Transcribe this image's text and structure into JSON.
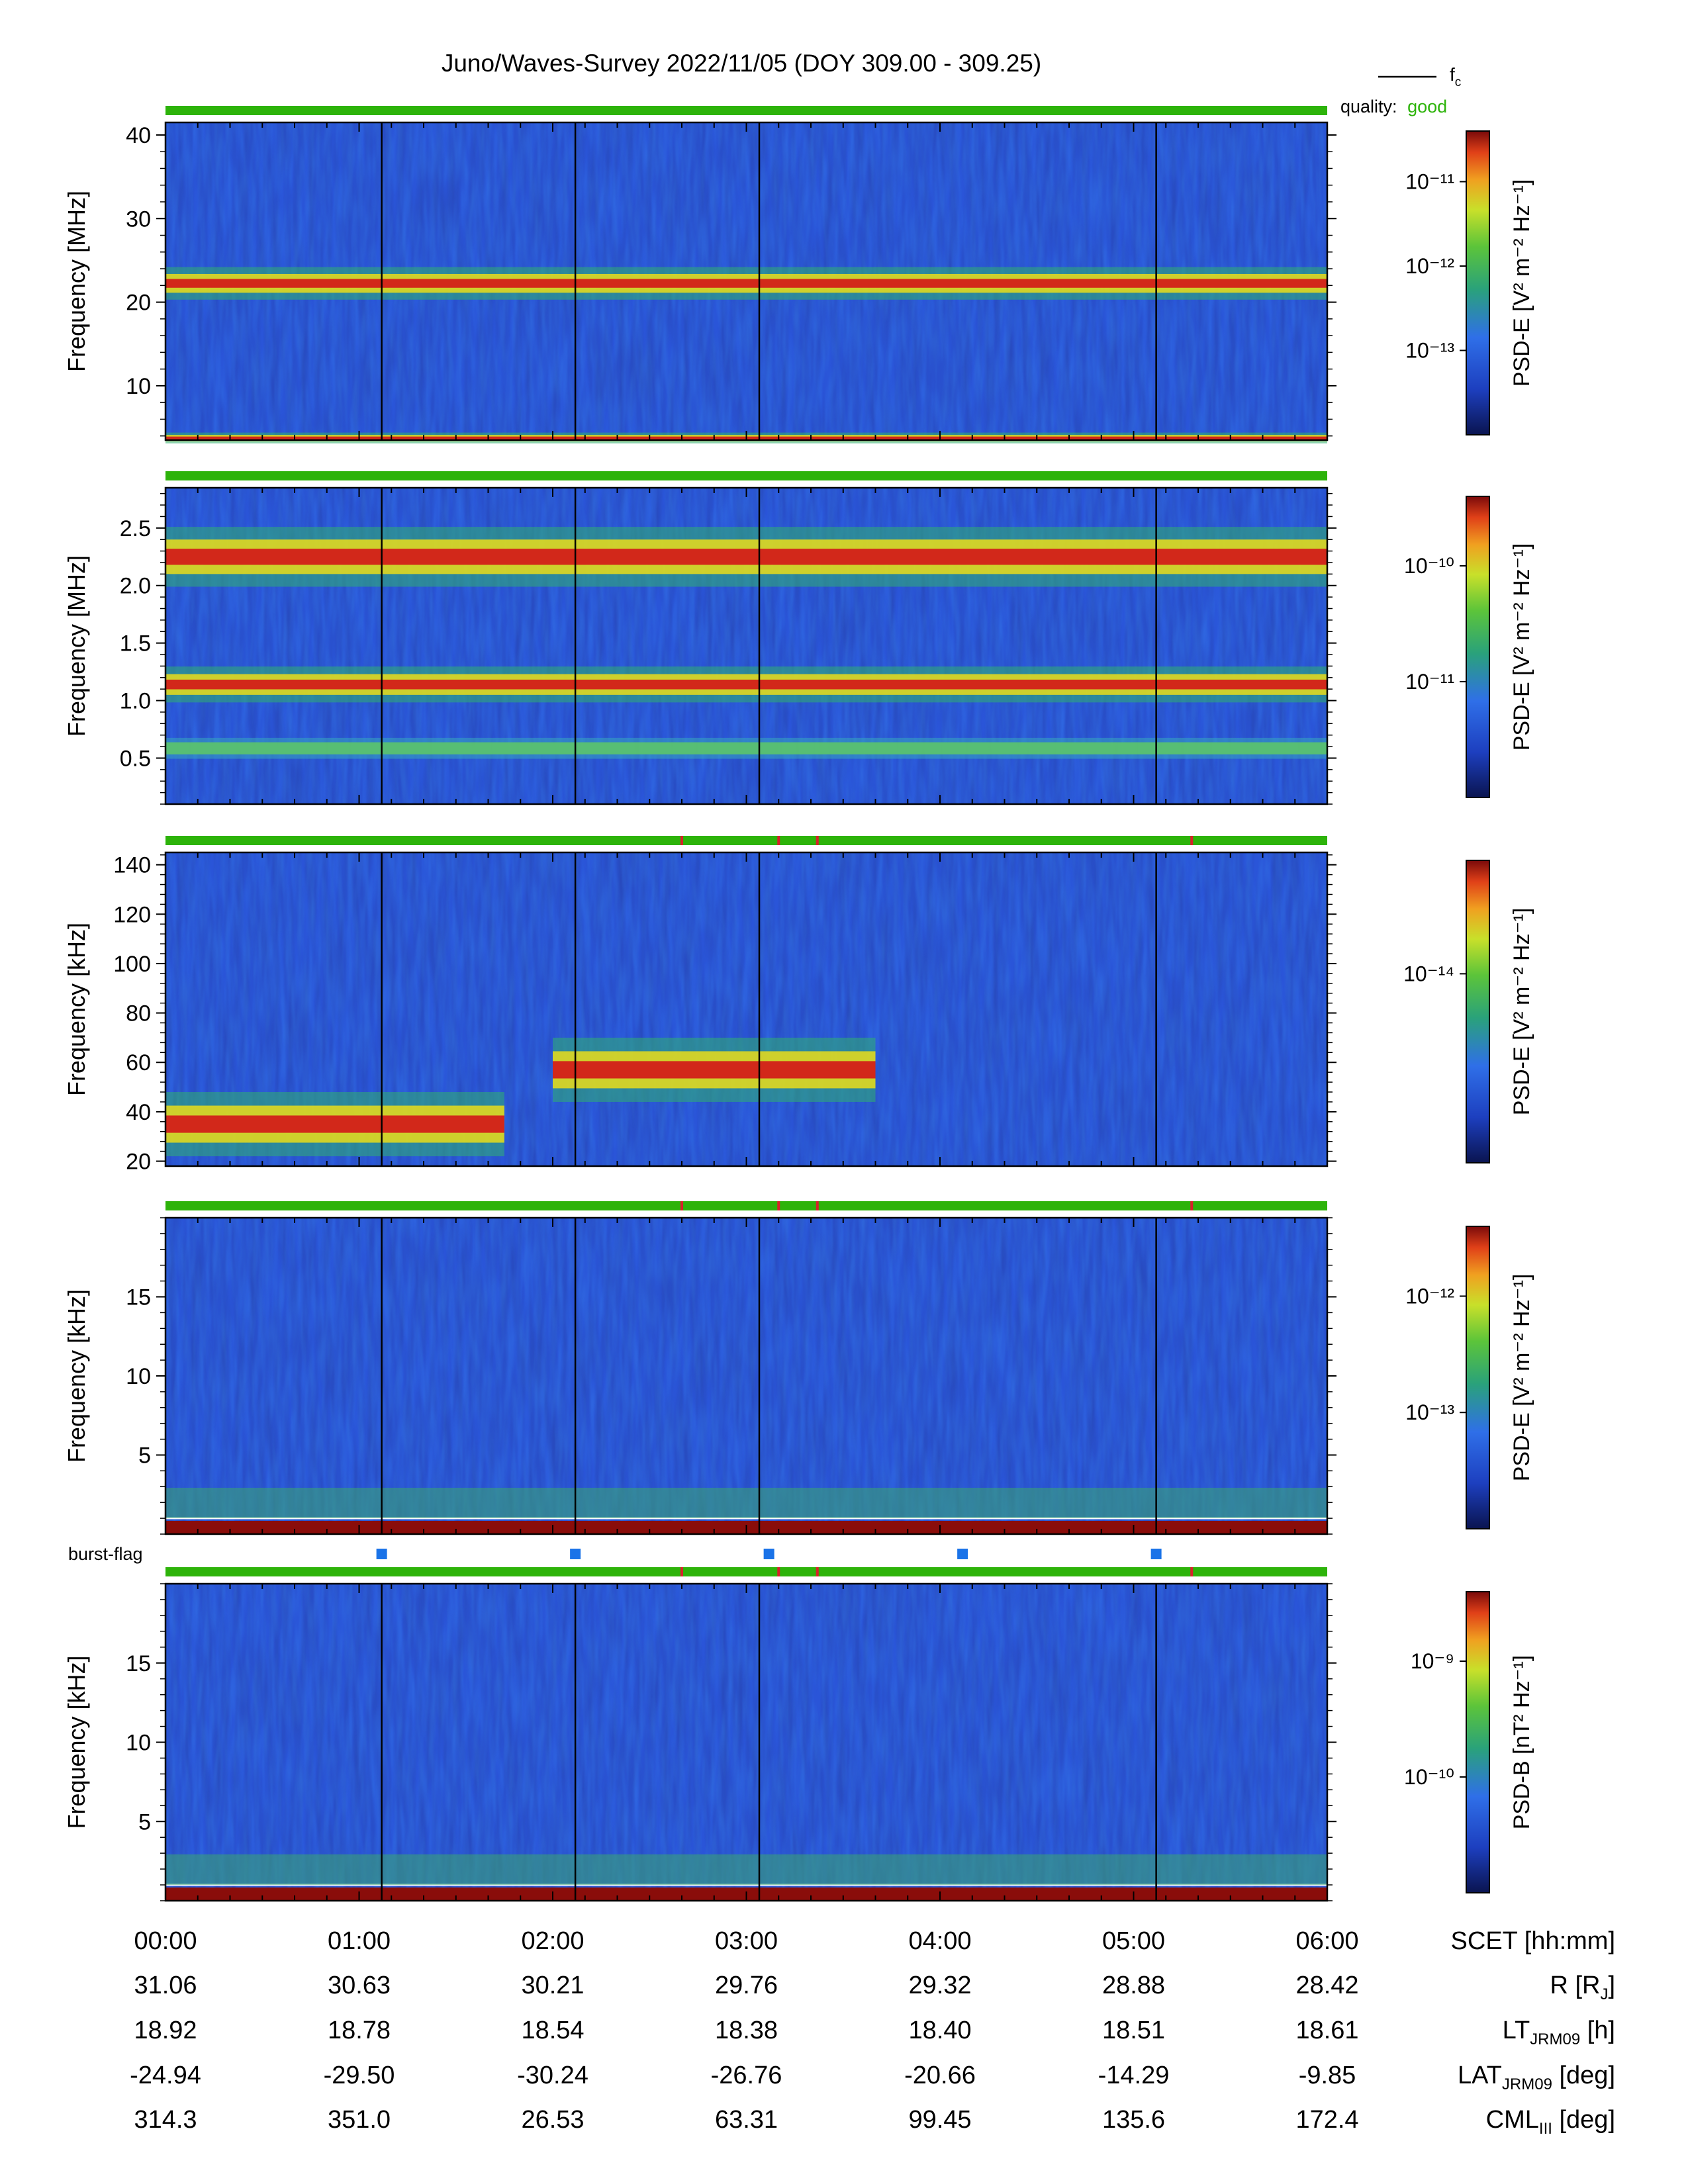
{
  "title": "Juno/Waves-Survey  2022/11/05 (DOY 309.00 - 309.25)",
  "legend": {
    "fc_label": "f",
    "fc_sub": "c",
    "quality_label": "quality:",
    "quality_value": "good",
    "quality_color": "#2db30a"
  },
  "burst_flag_label": "burst-flag",
  "burst_flag_color": "#1a73e8",
  "chart_data": [
    {
      "type": "heatmap",
      "panel": "HFR-high",
      "ylabel": "Frequency [MHz]",
      "yticks": [
        10,
        20,
        30,
        40
      ],
      "ylim": [
        3.5,
        41.5
      ],
      "colorbar": {
        "label": "PSD-E [V² m⁻² Hz⁻¹]",
        "ticks": [
          "10⁻¹¹",
          "10⁻¹²",
          "10⁻¹³"
        ],
        "scale": "log"
      },
      "features": [
        {
          "name": "intense emission band",
          "freq_MHz": [
            21.5,
            23.0
          ]
        },
        {
          "name": "low-frequency edge",
          "freq_MHz": [
            3.5,
            4.0
          ]
        }
      ]
    },
    {
      "type": "heatmap",
      "panel": "HFR-low",
      "ylabel": "Frequency [MHz]",
      "yticks": [
        0.5,
        1.0,
        1.5,
        2.0,
        2.5
      ],
      "ytick_labels": [
        "0.5",
        "1.0",
        "1.5",
        "2.0",
        "2.5"
      ],
      "ylim": [
        0.1,
        2.85
      ],
      "colorbar": {
        "label": "PSD-E [V² m⁻² Hz⁻¹]",
        "ticks": [
          "10⁻¹⁰",
          "10⁻¹¹"
        ],
        "scale": "log"
      },
      "features": [
        {
          "name": "strong band",
          "freq_MHz": [
            2.15,
            2.35
          ]
        },
        {
          "name": "strong band",
          "freq_MHz": [
            1.08,
            1.2
          ]
        },
        {
          "name": "weak band",
          "freq_MHz": [
            0.55,
            0.62
          ]
        }
      ]
    },
    {
      "type": "heatmap",
      "panel": "LFR-high",
      "ylabel": "Frequency [kHz]",
      "yticks": [
        20,
        40,
        60,
        80,
        100,
        120,
        140
      ],
      "ylim": [
        18,
        145
      ],
      "colorbar": {
        "label": "PSD-E [V² m⁻² Hz⁻¹]",
        "ticks": [
          "10⁻¹⁴"
        ],
        "scale": "log"
      },
      "features": [
        {
          "name": "band ~60 kHz",
          "time": [
            "02:00",
            "03:40"
          ],
          "freq_kHz": [
            52,
            62
          ]
        },
        {
          "name": "band ~35 kHz",
          "time": [
            "00:00",
            "01:45"
          ],
          "freq_kHz": [
            30,
            40
          ]
        }
      ]
    },
    {
      "type": "heatmap",
      "panel": "LFR-low-E",
      "ylabel": "Frequency [kHz]",
      "yticks": [
        5,
        10,
        15
      ],
      "ylim": [
        0,
        20
      ],
      "colorbar": {
        "label": "PSD-E [V² m⁻² Hz⁻¹]",
        "ticks": [
          "10⁻¹²",
          "10⁻¹³"
        ],
        "scale": "log"
      }
    },
    {
      "type": "heatmap",
      "panel": "LFR-low-B",
      "ylabel": "Frequency [kHz]",
      "yticks": [
        5,
        10,
        15
      ],
      "ylim": [
        0,
        20
      ],
      "colorbar": {
        "label": "PSD-B [nT² Hz⁻¹]",
        "ticks": [
          "10⁻⁹",
          "10⁻¹⁰"
        ],
        "scale": "log"
      }
    }
  ],
  "time_axis": {
    "xlim": [
      "00:00",
      "06:00"
    ],
    "vertical_lines": [
      "01:07",
      "02:07",
      "03:04",
      "05:07"
    ],
    "burst_flags": [
      "01:07",
      "02:07",
      "03:07",
      "04:07",
      "05:07"
    ],
    "quality_flags_red": [
      "02:40",
      "03:10",
      "03:22",
      "05:18"
    ]
  },
  "ephemeris": {
    "rows": [
      {
        "label": "SCET [hh:mm]",
        "values": [
          "00:00",
          "01:00",
          "02:00",
          "03:00",
          "04:00",
          "05:00",
          "06:00"
        ]
      },
      {
        "label": "R [R",
        "sub": "J",
        "tail": "]",
        "values": [
          "31.06",
          "30.63",
          "30.21",
          "29.76",
          "29.32",
          "28.88",
          "28.42"
        ]
      },
      {
        "label": "LT",
        "sub": "JRM09",
        "tail": " [h]",
        "values": [
          "18.92",
          "18.78",
          "18.54",
          "18.38",
          "18.40",
          "18.51",
          "18.61"
        ]
      },
      {
        "label": "LAT",
        "sub": "JRM09",
        "tail": " [deg]",
        "values": [
          "-24.94",
          "-29.50",
          "-30.24",
          "-26.76",
          "-20.66",
          "-14.29",
          "-9.85"
        ]
      },
      {
        "label": "CML",
        "sub": "III",
        "tail": " [deg]",
        "values": [
          "314.3",
          "351.0",
          "26.53",
          "63.31",
          "99.45",
          "135.6",
          "172.4"
        ]
      }
    ]
  }
}
